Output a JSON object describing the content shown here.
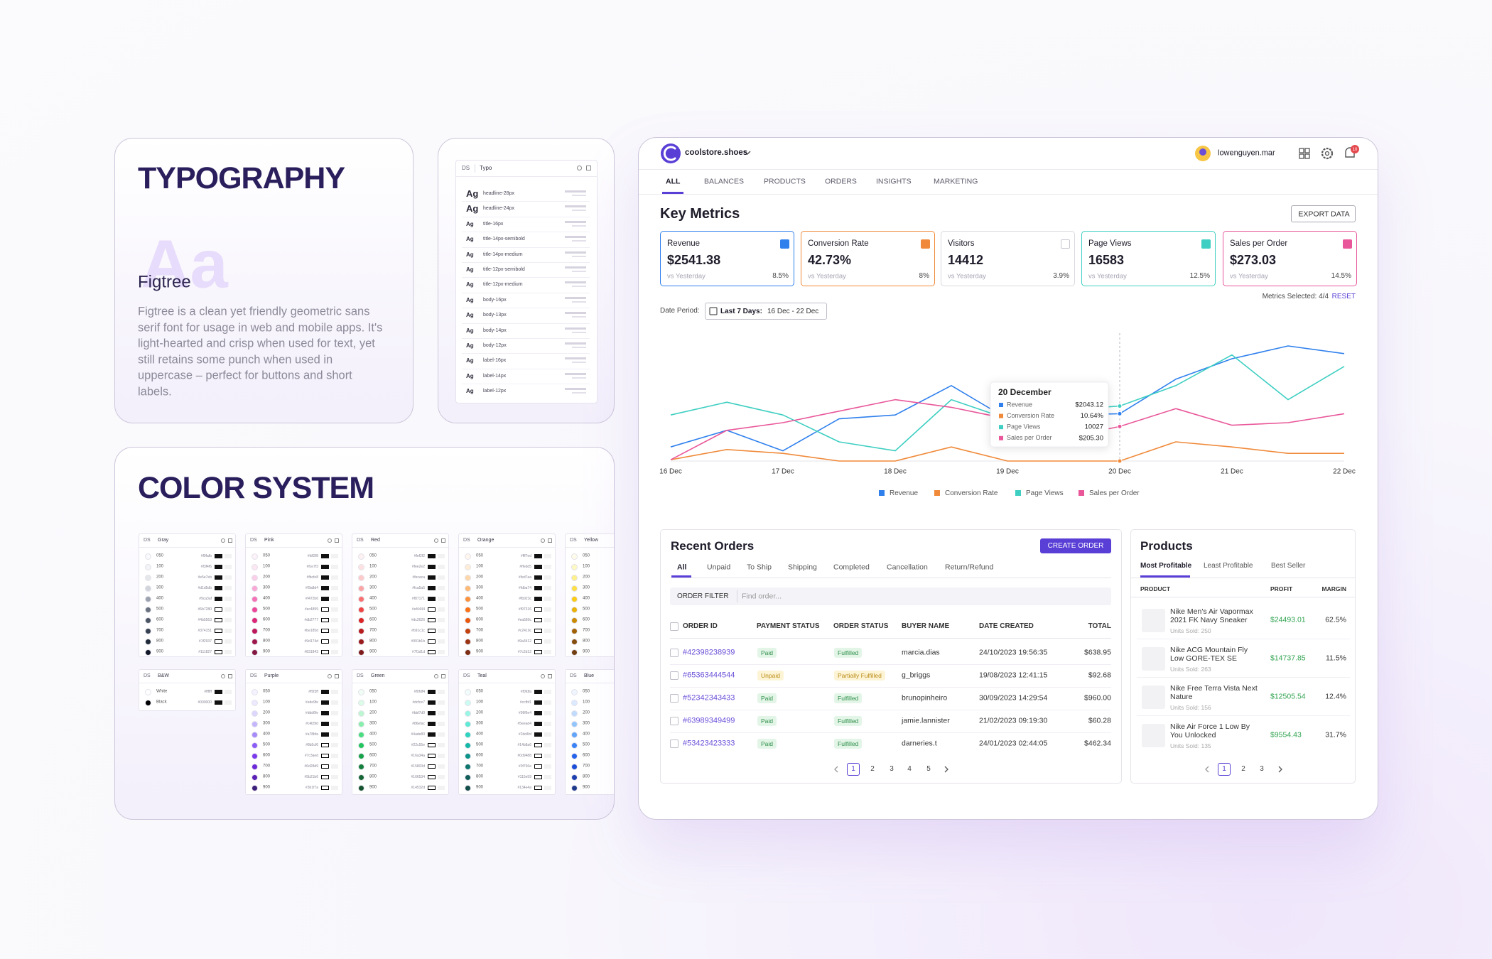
{
  "typography": {
    "title": "TYPOGRAPHY",
    "sample": "Aa",
    "font_name": "Figtree",
    "description": "Figtree is a clean yet friendly geometric sans serif font for usage in web and mobile apps. It's light-hearted and crisp when used for text, yet still retains some punch when used in uppercase – perfect for buttons and short labels."
  },
  "typo_panel": {
    "header": [
      "DS",
      "Typo"
    ],
    "sample": "Ag",
    "styles": [
      "headline-28px",
      "headline-24px",
      "title-16px",
      "title-14px-semibold",
      "title-14px-medium",
      "title-12px-semibold",
      "title-12px-medium",
      "body-16px",
      "body-13px",
      "body-14px",
      "body-12px",
      "label-16px",
      "label-14px",
      "label-12px"
    ]
  },
  "color_system": {
    "title": "COLOR SYSTEM",
    "tag": "DS",
    "shades": [
      "050",
      "100",
      "200",
      "300",
      "400",
      "500",
      "600",
      "700",
      "800",
      "900"
    ],
    "palettes": [
      {
        "name": "Gray",
        "colors": [
          "#f9fafb",
          "#f3f4f6",
          "#e5e7eb",
          "#d1d5db",
          "#9ca3af",
          "#6b7280",
          "#4b5563",
          "#374151",
          "#1f2937",
          "#111827"
        ]
      },
      {
        "name": "Pink",
        "colors": [
          "#fdf2f8",
          "#fce7f3",
          "#fbcfe8",
          "#f9a8d4",
          "#f472b6",
          "#ec4899",
          "#db2777",
          "#be185d",
          "#9d174d",
          "#831843"
        ]
      },
      {
        "name": "Red",
        "colors": [
          "#fef2f2",
          "#fee2e2",
          "#fecaca",
          "#fca5a5",
          "#f87171",
          "#ef4444",
          "#dc2626",
          "#b91c1c",
          "#991b1b",
          "#7f1d1d"
        ]
      },
      {
        "name": "Orange",
        "colors": [
          "#fff7ed",
          "#ffedd5",
          "#fed7aa",
          "#fdba74",
          "#fb923c",
          "#f97316",
          "#ea580c",
          "#c2410c",
          "#9a3412",
          "#7c2d12"
        ]
      },
      {
        "name": "Yellow",
        "colors": [
          "#fefce8",
          "#fef9c3",
          "#fef08a",
          "#fde047",
          "#facc15",
          "#eab308",
          "#ca8a04",
          "#a16207",
          "#854d0e",
          "#713f12"
        ]
      },
      {
        "name": "B&W",
        "labels": [
          "White",
          "Black"
        ],
        "colors": [
          "#ffffff",
          "#000000"
        ]
      },
      {
        "name": "Purple",
        "colors": [
          "#f5f3ff",
          "#ede9fe",
          "#ddd6fe",
          "#c4b5fd",
          "#a78bfa",
          "#8b5cf6",
          "#7c3aed",
          "#6d28d9",
          "#5b21b6",
          "#3b1f7a"
        ]
      },
      {
        "name": "Green",
        "colors": [
          "#f0fdf4",
          "#dcfce7",
          "#bbf7d0",
          "#86efac",
          "#4ade80",
          "#22c55e",
          "#16a34a",
          "#15803d",
          "#166534",
          "#14532d"
        ]
      },
      {
        "name": "Teal",
        "colors": [
          "#f0fdfa",
          "#ccfbf1",
          "#99f6e4",
          "#5eead4",
          "#2dd4bf",
          "#14b8a6",
          "#0d9488",
          "#0f766e",
          "#115e59",
          "#134e4a"
        ]
      },
      {
        "name": "Blue",
        "colors": [
          "#eff6ff",
          "#dbeafe",
          "#bfdbfe",
          "#93c5fd",
          "#60a5fa",
          "#3b82f6",
          "#2563eb",
          "#1d4ed8",
          "#1e40af",
          "#1e3a8a"
        ]
      }
    ]
  },
  "dashboard": {
    "brand": "coolstore.shoes",
    "user": "lowenguyen.mar",
    "badge": "10",
    "nav": [
      "ALL",
      "BALANCES",
      "PRODUCTS",
      "ORDERS",
      "INSIGHTS",
      "MARKETING"
    ],
    "title": "Key Metrics",
    "export": "EXPORT DATA",
    "compare": "vs Yesterday",
    "metrics": [
      {
        "name": "Revenue",
        "value": "$2541.38",
        "change": "8.5%",
        "direction": "up",
        "color": "#2f80ed",
        "checked": true
      },
      {
        "name": "Conversion Rate",
        "value": "42.73%",
        "change": "8%",
        "direction": "up",
        "color": "#f08a3a",
        "checked": true
      },
      {
        "name": "Visitors",
        "value": "14412",
        "change": "3.9%",
        "direction": "down",
        "color": "#d9d9e0",
        "checked": false
      },
      {
        "name": "Page Views",
        "value": "16583",
        "change": "12.5%",
        "direction": "down",
        "color": "#3fcfc2",
        "checked": true
      },
      {
        "name": "Sales per Order",
        "value": "$273.03",
        "change": "14.5%",
        "direction": "up",
        "color": "#e9579a",
        "checked": true
      }
    ],
    "selected": "Metrics Selected: 4/4",
    "reset": "RESET",
    "period_label": "Date Period:",
    "period_name": "Last 7 Days:",
    "period_range": "16 Dec - 22 Dec",
    "orders": {
      "title": "Recent Orders",
      "button": "CREATE ORDER",
      "tabs": [
        "All",
        "Unpaid",
        "To Ship",
        "Shipping",
        "Completed",
        "Cancellation",
        "Return/Refund"
      ],
      "filter": "ORDER FILTER",
      "search": "Find order...",
      "columns": [
        "ORDER ID",
        "PAYMENT STATUS",
        "ORDER STATUS",
        "BUYER NAME",
        "DATE CREATED",
        "TOTAL"
      ],
      "rows": [
        {
          "id": "#42398238939",
          "payment": {
            "label": "Paid",
            "tone": "success"
          },
          "status": {
            "label": "Fulfilled",
            "tone": "success"
          },
          "buyer": "marcia.dias",
          "date": "24/10/2023 19:56:35",
          "total": "$638.95"
        },
        {
          "id": "#65363444544",
          "payment": {
            "label": "Unpaid",
            "tone": "warning"
          },
          "status": {
            "label": "Partially Fulfilled",
            "tone": "warning"
          },
          "buyer": "g_briggs",
          "date": "19/08/2023 12:41:15",
          "total": "$92.68"
        },
        {
          "id": "#52342343433",
          "payment": {
            "label": "Paid",
            "tone": "success"
          },
          "status": {
            "label": "Fulfilled",
            "tone": "success"
          },
          "buyer": "brunopinheiro",
          "date": "30/09/2023 14:29:54",
          "total": "$960.00"
        },
        {
          "id": "#63989349499",
          "payment": {
            "label": "Paid",
            "tone": "success"
          },
          "status": {
            "label": "Fulfilled",
            "tone": "success"
          },
          "buyer": "jamie.lannister",
          "date": "21/02/2023 09:19:30",
          "total": "$60.28"
        },
        {
          "id": "#53423423333",
          "payment": {
            "label": "Paid",
            "tone": "success"
          },
          "status": {
            "label": "Fulfilled",
            "tone": "success"
          },
          "buyer": "darneries.t",
          "date": "24/01/2023 02:44:05",
          "total": "$462.34"
        }
      ],
      "pages": [
        "1",
        "2",
        "3",
        "4",
        "5"
      ]
    },
    "products": {
      "title": "Products",
      "tabs": [
        "Most Profitable",
        "Least Profitable",
        "Best Seller"
      ],
      "columns": [
        "PRODUCT",
        "PROFIT",
        "MARGIN"
      ],
      "rows": [
        {
          "name": "Nike Men's Air Vapormax 2021 FK Navy Sneaker",
          "units": "Units Sold: 250",
          "profit": "$24493.01",
          "margin": "62.5%"
        },
        {
          "name": "Nike ACG Mountain Fly Low GORE-TEX SE",
          "units": "Units Sold: 263",
          "profit": "$14737.85",
          "margin": "11.5%"
        },
        {
          "name": "Nike Free Terra Vista Next Nature",
          "units": "Units Sold: 156",
          "profit": "$12505.54",
          "margin": "12.4%"
        },
        {
          "name": "Nike Air Force 1 Low By You Unlocked",
          "units": "Units Sold: 135",
          "profit": "$9554.43",
          "margin": "31.7%"
        }
      ],
      "pages": [
        "1",
        "2",
        "3"
      ]
    }
  },
  "chart_data": {
    "type": "line",
    "categories": [
      "16 Dec",
      null,
      "17 Dec",
      null,
      "18 Dec",
      null,
      "19 Dec",
      null,
      "20 Dec",
      null,
      "21 Dec",
      null,
      "22 Dec"
    ],
    "ylim": [
      0,
      100
    ],
    "grid": false,
    "series": [
      {
        "name": "Revenue",
        "color": "#2f80ed",
        "values": [
          11,
          24,
          8,
          33,
          36,
          59,
          33,
          36,
          37,
          64,
          80,
          90,
          84
        ]
      },
      {
        "name": "Conversion Rate",
        "color": "#f08a3a",
        "values": [
          1,
          9,
          6,
          0,
          0,
          11,
          0,
          0,
          0,
          15,
          11,
          6,
          6
        ]
      },
      {
        "name": "Page Views",
        "color": "#3fcfc2",
        "values": [
          36,
          46,
          36,
          15,
          8,
          48,
          33,
          40,
          43,
          59,
          83,
          48,
          74
        ]
      },
      {
        "name": "Sales per Order",
        "color": "#e9579a",
        "values": [
          1,
          24,
          30,
          39,
          48,
          42,
          33,
          18,
          27,
          41,
          28,
          30,
          37
        ]
      }
    ],
    "tooltip": {
      "title": "20 December",
      "index": 8,
      "values": [
        "$2043.12",
        "10.64%",
        "10027",
        "$205.30"
      ]
    }
  }
}
